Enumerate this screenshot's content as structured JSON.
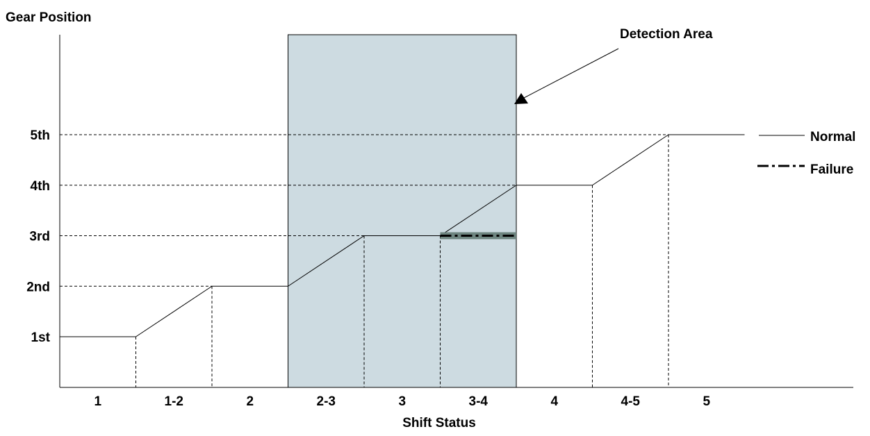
{
  "chart_data": {
    "type": "line",
    "ylabel": "Gear Position",
    "xlabel": "Shift Status",
    "y_categories": [
      "1st",
      "2nd",
      "3rd",
      "4th",
      "5th"
    ],
    "x_categories": [
      "1",
      "1-2",
      "2",
      "2-3",
      "3",
      "3-4",
      "4",
      "4-5",
      "5"
    ],
    "series": [
      {
        "name": "Normal",
        "style": "solid",
        "color": "#000000",
        "points": [
          {
            "x": 0,
            "y": 1
          },
          {
            "x": 1,
            "y": 1
          },
          {
            "x": 2,
            "y": 2
          },
          {
            "x": 3,
            "y": 2
          },
          {
            "x": 4,
            "y": 3
          },
          {
            "x": 5,
            "y": 3
          },
          {
            "x": 6,
            "y": 4
          },
          {
            "x": 7,
            "y": 4
          },
          {
            "x": 8,
            "y": 5
          },
          {
            "x": 9,
            "y": 5
          }
        ]
      },
      {
        "name": "Failure",
        "style": "dash-dot",
        "color": "#000000",
        "points": [
          {
            "x": 5,
            "y": 3
          },
          {
            "x": 6,
            "y": 3
          }
        ]
      }
    ],
    "highlight": {
      "label": "Detection Area",
      "x_range": [
        3,
        6
      ],
      "color": "#cddbe1"
    },
    "grid": "dashed reference lines",
    "legend_position": "right"
  }
}
